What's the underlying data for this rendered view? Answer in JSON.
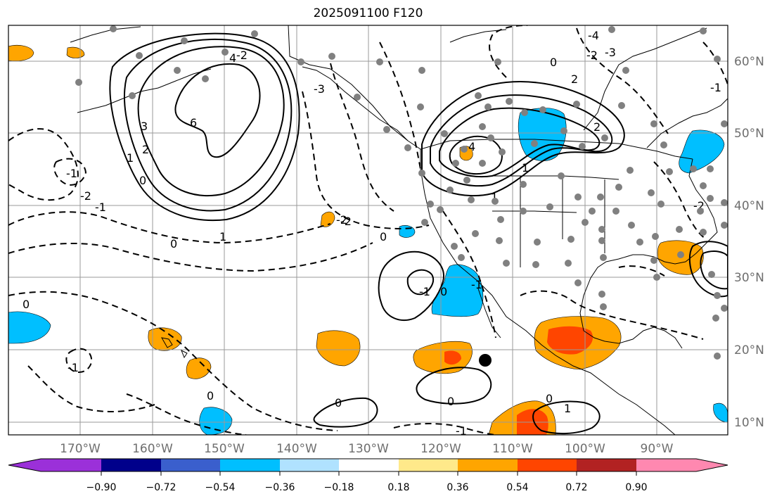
{
  "title": "2025091100 F120",
  "longitude_labels": [
    "170°W",
    "160°W",
    "150°W",
    "140°W",
    "130°W",
    "120°W",
    "110°W",
    "100°W",
    "90°W"
  ],
  "latitude_labels": [
    "10°N",
    "20°N",
    "30°N",
    "40°N",
    "50°N",
    "60°N"
  ],
  "colorbar": {
    "colors": [
      "#9b30d9",
      "#00008b",
      "#3a5fcd",
      "#00bfff",
      "#b0e2ff",
      "#ffffff",
      "#ffe98a",
      "#ffa500",
      "#ff4500",
      "#b22222",
      "#ff88b0"
    ],
    "tick_labels": [
      "−0.90",
      "−0.72",
      "−0.54",
      "−0.36",
      "−0.18",
      "0.18",
      "0.36",
      "0.54",
      "0.72",
      "0.90"
    ]
  },
  "contour_labels": [
    "4",
    "6",
    "3",
    "2",
    "1",
    "0",
    "-1",
    "-2",
    "-1",
    "0",
    "-2",
    "0",
    "1",
    "0",
    "0",
    "-1",
    "0",
    "0",
    "-1",
    "1",
    "-2",
    "-1",
    "0",
    "-2",
    "-3",
    "-4",
    "0",
    "2",
    "4",
    "1",
    "1",
    "0",
    "2",
    "-2",
    "-2",
    "-3",
    "-1",
    "-1"
  ]
}
